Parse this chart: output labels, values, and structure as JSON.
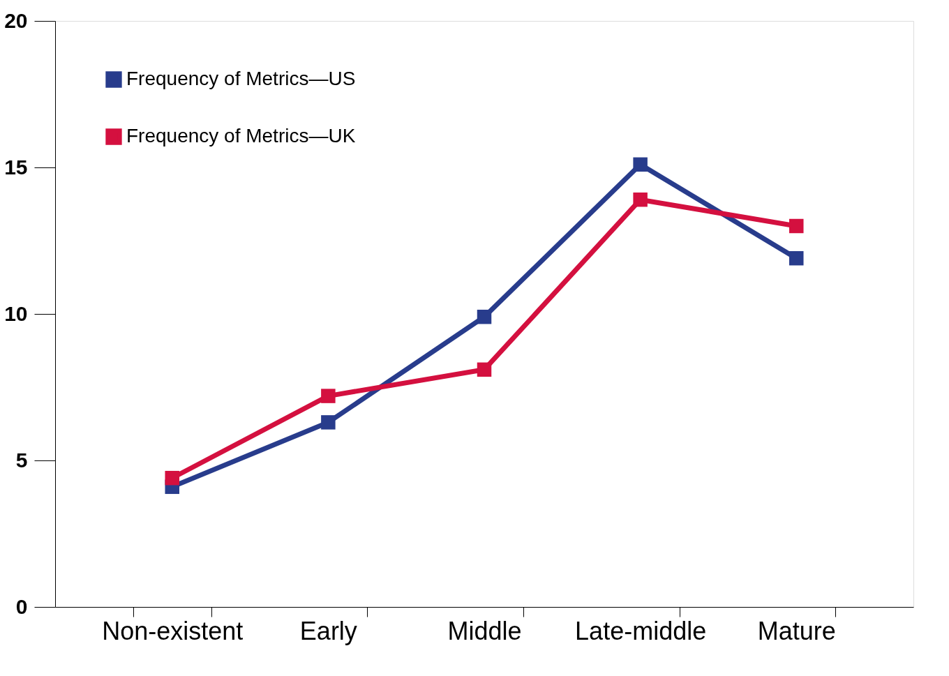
{
  "chart_data": {
    "type": "line",
    "categories": [
      "Non-existent",
      "Early",
      "Middle",
      "Late-middle",
      "Mature"
    ],
    "series": [
      {
        "name": "Frequency of Metrics—US",
        "color": "#283c8c",
        "values": [
          4.1,
          6.3,
          9.9,
          15.1,
          11.9
        ]
      },
      {
        "name": "Frequency of Metrics—UK",
        "color": "#d4103f",
        "values": [
          4.4,
          7.2,
          8.1,
          13.9,
          13.0
        ]
      }
    ],
    "ylim": [
      0,
      20
    ],
    "yticks": [
      0,
      5,
      10,
      15,
      20
    ],
    "grid": false,
    "legend": "top left",
    "marker": "square",
    "line_style": "solid"
  }
}
